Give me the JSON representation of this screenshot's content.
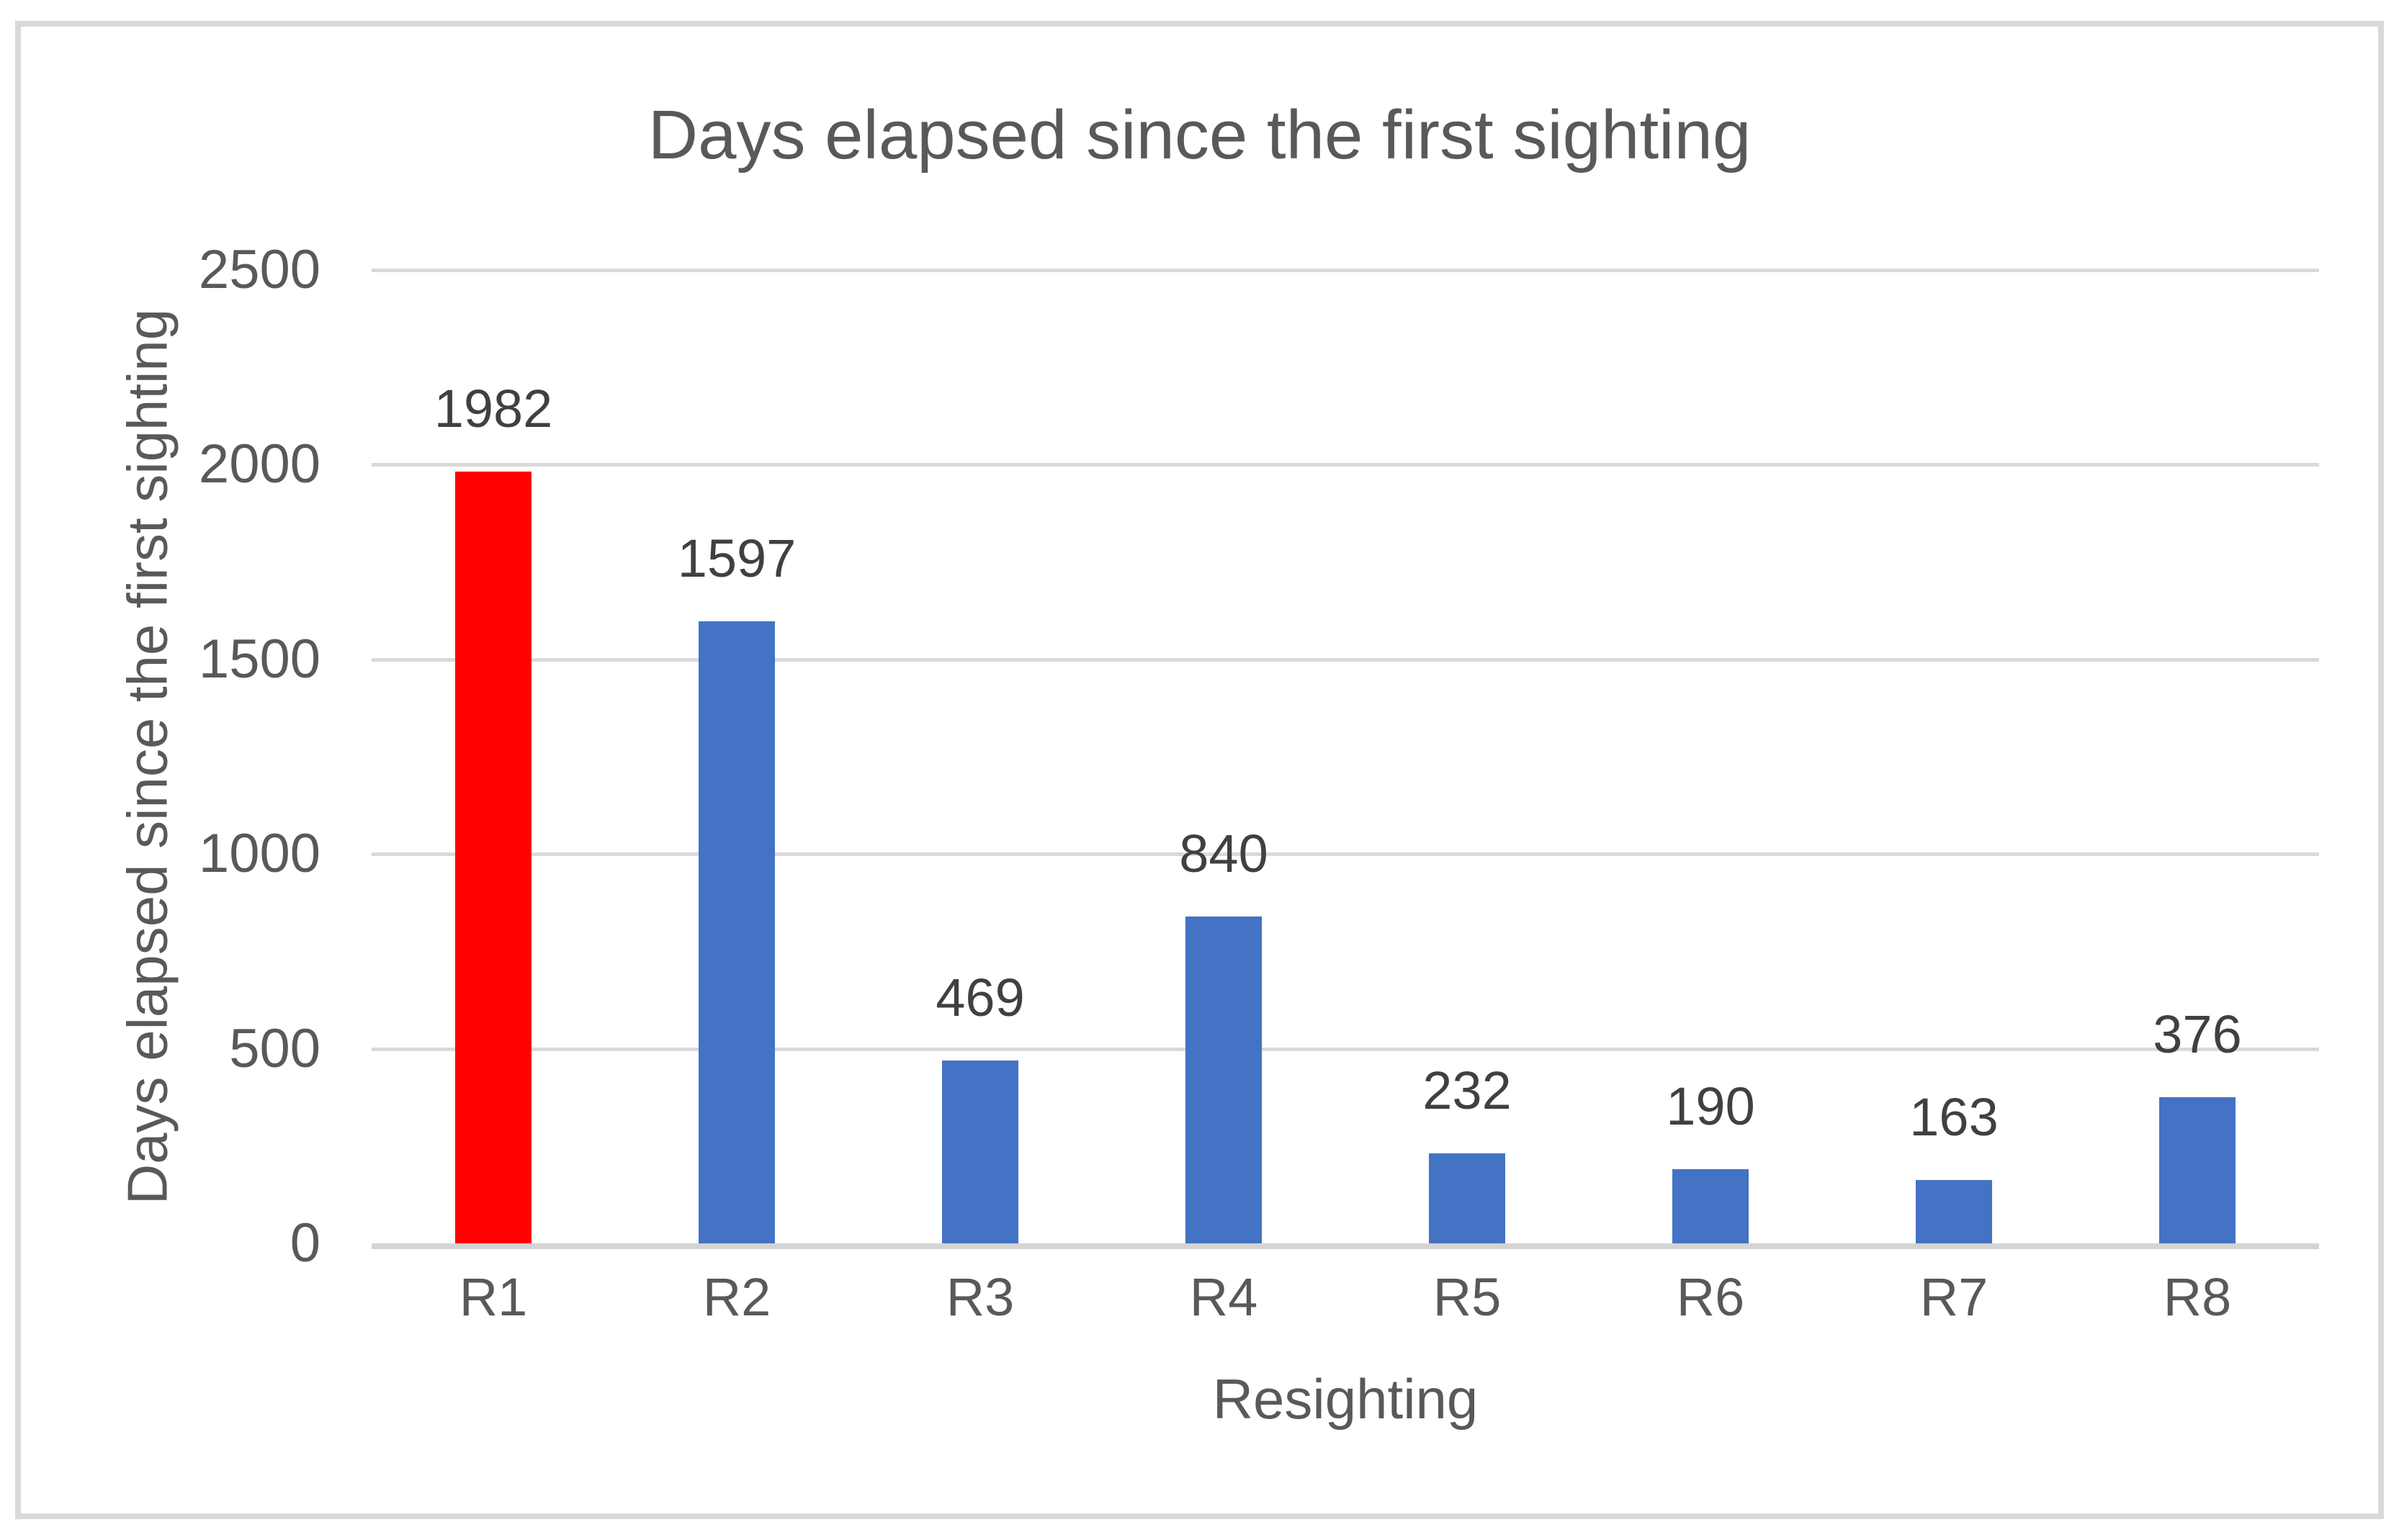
{
  "title": "Days elapsed since the first sighting",
  "chart_data": {
    "type": "bar",
    "title": "Days elapsed since the first sighting",
    "xlabel": "Resighting",
    "ylabel": "Days elapsed since the first sighting",
    "categories": [
      "R1",
      "R2",
      "R3",
      "R4",
      "R5",
      "R6",
      "R7",
      "R8"
    ],
    "values": [
      1982,
      1597,
      469,
      840,
      232,
      190,
      163,
      376
    ],
    "bar_colors": [
      "#FF0000",
      "#4472C4",
      "#4472C4",
      "#4472C4",
      "#4472C4",
      "#4472C4",
      "#4472C4",
      "#4472C4"
    ],
    "data_labels": [
      1982,
      1597,
      469,
      840,
      232,
      190,
      163,
      376
    ],
    "ylim": [
      0,
      2500
    ],
    "yticks": [
      0,
      500,
      1000,
      1500,
      2000,
      2500
    ],
    "grid": "horizontal",
    "legend": "none"
  },
  "colors": {
    "bar_blue": "#4472C4",
    "bar_red": "#FF0000",
    "gridline": "#D9D9D9",
    "axis_line": "#D4D4D4",
    "border": "#D9D9D9",
    "title_text": "#595959",
    "tick_text": "#595959",
    "data_label_text": "#404040",
    "background": "#FFFFFF"
  }
}
